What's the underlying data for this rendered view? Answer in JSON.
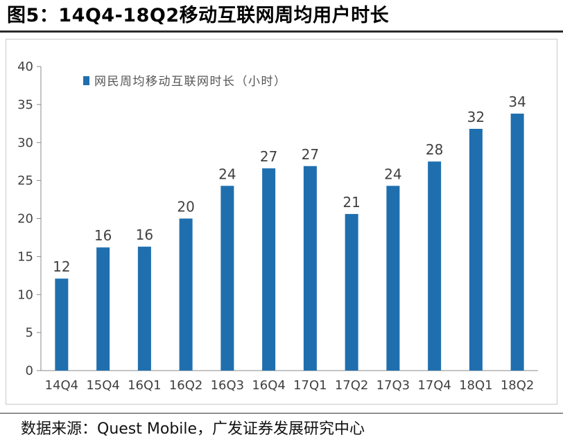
{
  "header": {
    "title": "图5：14Q4-18Q2移动互联网周均用户时长"
  },
  "footer": {
    "source": "数据来源：Quest Mobile，广发证券发展研究中心"
  },
  "chart_data": {
    "type": "bar",
    "categories": [
      "14Q4",
      "15Q4",
      "16Q1",
      "16Q2",
      "16Q3",
      "16Q4",
      "17Q1",
      "17Q2",
      "17Q3",
      "17Q4",
      "18Q1",
      "18Q2"
    ],
    "series": [
      {
        "name": "网民周均移动互联网时长（小时）",
        "values": [
          12,
          16,
          16,
          20,
          24,
          27,
          27,
          21,
          24,
          28,
          32,
          34
        ],
        "bar_values": [
          12.1,
          16.2,
          16.3,
          20,
          24.3,
          26.6,
          26.9,
          20.6,
          24.3,
          27.5,
          31.8,
          33.8
        ]
      }
    ],
    "ylim": [
      0,
      40
    ],
    "yticks": [
      "0",
      "5",
      "10",
      "15",
      "20",
      "25",
      "30",
      "35",
      "40"
    ],
    "xlabel": "",
    "ylabel": "",
    "legend": "top-left",
    "grid": false,
    "colors": {
      "bar": "#1f6faf",
      "axis": "#888888",
      "text": "#404040"
    }
  }
}
